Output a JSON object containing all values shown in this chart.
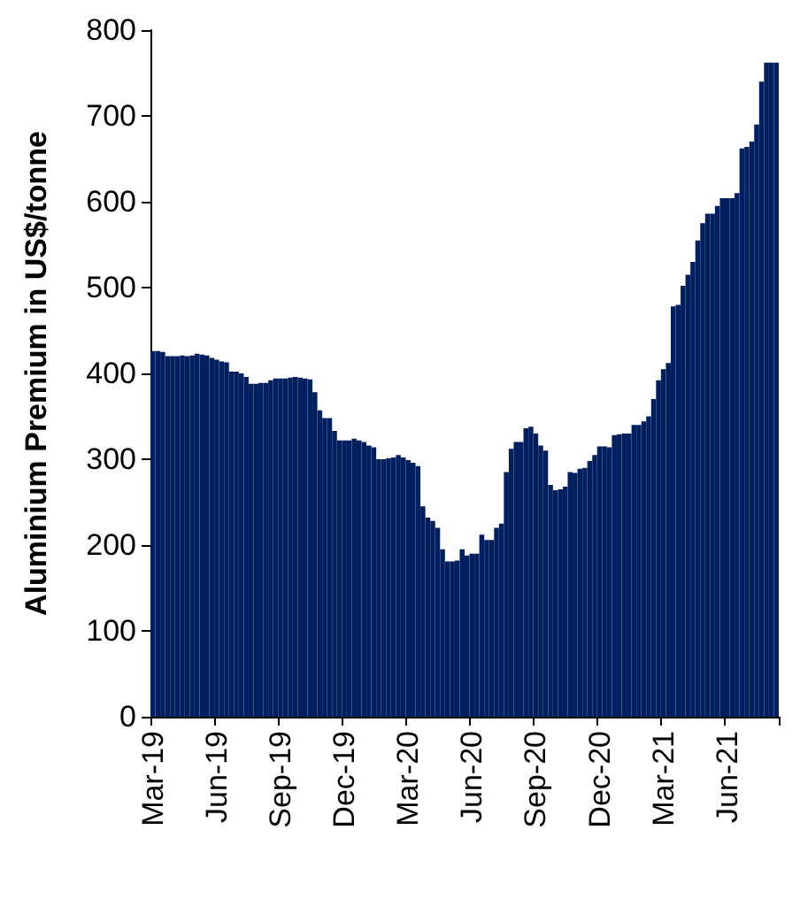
{
  "chart_data": {
    "type": "bar",
    "ylabel": "Aluminium Premium in US$/tonne",
    "color": "#001f5f",
    "categories": [
      "Mar-19",
      null,
      null,
      null,
      null,
      null,
      null,
      null,
      null,
      null,
      null,
      null,
      null,
      "Jun-19",
      null,
      null,
      null,
      null,
      null,
      null,
      null,
      null,
      null,
      null,
      null,
      null,
      "Sep-19",
      null,
      null,
      null,
      null,
      null,
      null,
      null,
      null,
      null,
      null,
      null,
      null,
      "Dec-19",
      null,
      null,
      null,
      null,
      null,
      null,
      null,
      null,
      null,
      null,
      null,
      null,
      "Mar-20",
      null,
      null,
      null,
      null,
      null,
      null,
      null,
      null,
      null,
      null,
      null,
      null,
      "Jun-20",
      null,
      null,
      null,
      null,
      null,
      null,
      null,
      null,
      null,
      null,
      null,
      null,
      "Sep-20",
      null,
      null,
      null,
      null,
      null,
      null,
      null,
      null,
      null,
      null,
      null,
      null,
      "Dec-20",
      null,
      null,
      null,
      null,
      null,
      null,
      null,
      null,
      null,
      null,
      null,
      null,
      "Mar-21",
      null,
      null,
      null,
      null,
      null,
      null,
      null,
      null,
      null,
      null,
      null,
      null,
      "Jun-21",
      null,
      null,
      null,
      null,
      null,
      null,
      null,
      null,
      null,
      null
    ],
    "values": [
      426,
      426,
      425,
      420,
      420,
      420,
      421,
      420,
      421,
      423,
      422,
      421,
      418,
      416,
      414,
      413,
      402,
      402,
      400,
      396,
      388,
      388,
      389,
      389,
      392,
      394,
      394,
      394,
      395,
      396,
      395,
      394,
      393,
      378,
      357,
      348,
      348,
      333,
      322,
      322,
      322,
      324,
      322,
      320,
      316,
      314,
      300,
      300,
      301,
      302,
      305,
      302,
      299,
      296,
      292,
      245,
      232,
      228,
      220,
      195,
      181,
      181,
      182,
      195,
      188,
      190,
      190,
      212,
      206,
      206,
      220,
      225,
      285,
      312,
      320,
      320,
      336,
      338,
      330,
      316,
      310,
      270,
      264,
      265,
      268,
      285,
      284,
      289,
      290,
      298,
      305,
      315,
      315,
      314,
      328,
      329,
      330,
      330,
      340,
      340,
      344,
      350,
      370,
      392,
      405,
      412,
      478,
      480,
      502,
      515,
      530,
      555,
      575,
      586,
      586,
      595,
      604,
      604,
      604,
      610,
      662,
      664,
      670,
      690,
      740,
      762,
      762,
      762
    ],
    "ylim": [
      0,
      800
    ],
    "yticks": [
      0,
      100,
      200,
      300,
      400,
      500,
      600,
      700,
      800
    ],
    "grid": false
  }
}
